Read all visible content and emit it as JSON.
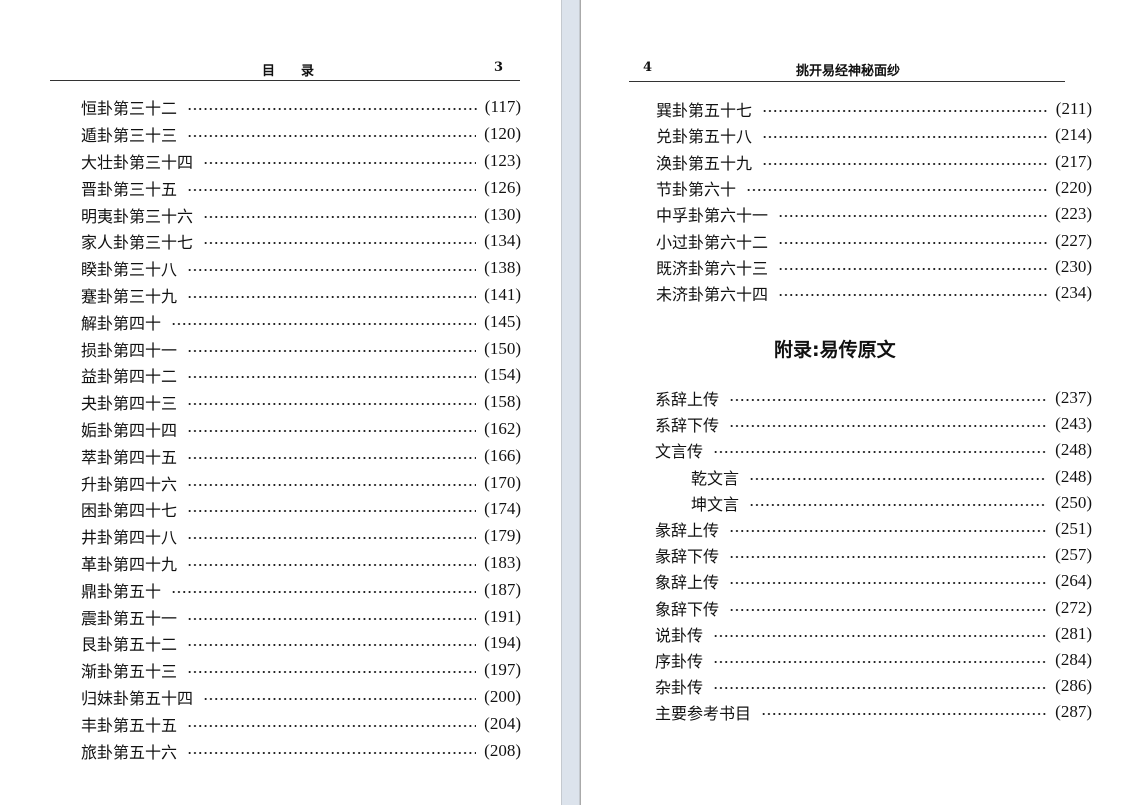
{
  "left_page": {
    "header_title": "目　　录",
    "page_number": "3",
    "entries": [
      {
        "title": "恒卦第三十二",
        "page": "(117)"
      },
      {
        "title": "遁卦第三十三",
        "page": "(120)"
      },
      {
        "title": "大壮卦第三十四",
        "page": "(123)"
      },
      {
        "title": "晋卦第三十五",
        "page": "(126)"
      },
      {
        "title": "明夷卦第三十六",
        "page": "(130)"
      },
      {
        "title": "家人卦第三十七",
        "page": "(134)"
      },
      {
        "title": "睽卦第三十八",
        "page": "(138)"
      },
      {
        "title": "蹇卦第三十九",
        "page": "(141)"
      },
      {
        "title": "解卦第四十",
        "page": "(145)"
      },
      {
        "title": "损卦第四十一",
        "page": "(150)"
      },
      {
        "title": "益卦第四十二",
        "page": "(154)"
      },
      {
        "title": "夬卦第四十三",
        "page": "(158)"
      },
      {
        "title": "姤卦第四十四",
        "page": "(162)"
      },
      {
        "title": "萃卦第四十五",
        "page": "(166)"
      },
      {
        "title": "升卦第四十六",
        "page": "(170)"
      },
      {
        "title": "困卦第四十七",
        "page": "(174)"
      },
      {
        "title": "井卦第四十八",
        "page": "(179)"
      },
      {
        "title": "革卦第四十九",
        "page": "(183)"
      },
      {
        "title": "鼎卦第五十",
        "page": "(187)"
      },
      {
        "title": "震卦第五十一",
        "page": "(191)"
      },
      {
        "title": "艮卦第五十二",
        "page": "(194)"
      },
      {
        "title": "渐卦第五十三",
        "page": "(197)"
      },
      {
        "title": "归妹卦第五十四",
        "page": "(200)"
      },
      {
        "title": "丰卦第五十五",
        "page": "(204)"
      },
      {
        "title": "旅卦第五十六",
        "page": "(208)"
      }
    ]
  },
  "right_page": {
    "page_number": "4",
    "header_title": "挑开易经神秘面纱",
    "entries": [
      {
        "title": "巽卦第五十七",
        "page": "(211)"
      },
      {
        "title": "兑卦第五十八",
        "page": "(214)"
      },
      {
        "title": "涣卦第五十九",
        "page": "(217)"
      },
      {
        "title": "节卦第六十",
        "page": "(220)"
      },
      {
        "title": "中孚卦第六十一",
        "page": "(223)"
      },
      {
        "title": "小过卦第六十二",
        "page": "(227)"
      },
      {
        "title": "既济卦第六十三",
        "page": "(230)"
      },
      {
        "title": "未济卦第六十四",
        "page": "(234)"
      }
    ],
    "appendix_title": "附录:易传原文",
    "appendix_entries": [
      {
        "title": "系辞上传",
        "page": "(237)",
        "sub": false
      },
      {
        "title": "系辞下传",
        "page": "(243)",
        "sub": false
      },
      {
        "title": "文言传",
        "page": "(248)",
        "sub": false
      },
      {
        "title": "乾文言",
        "page": "(248)",
        "sub": true
      },
      {
        "title": "坤文言",
        "page": "(250)",
        "sub": true
      },
      {
        "title": "彖辞上传",
        "page": "(251)",
        "sub": false
      },
      {
        "title": "彖辞下传",
        "page": "(257)",
        "sub": false
      },
      {
        "title": "象辞上传",
        "page": "(264)",
        "sub": false
      },
      {
        "title": "象辞下传",
        "page": "(272)",
        "sub": false
      },
      {
        "title": "说卦传",
        "page": "(281)",
        "sub": false
      },
      {
        "title": "序卦传",
        "page": "(284)",
        "sub": false
      },
      {
        "title": "杂卦传",
        "page": "(286)",
        "sub": false
      },
      {
        "title": "主要参考书目",
        "page": "(287)",
        "sub": false
      }
    ]
  },
  "colors": {
    "gutter": "#dce3ec",
    "text": "#111111",
    "page": "#ffffff"
  }
}
